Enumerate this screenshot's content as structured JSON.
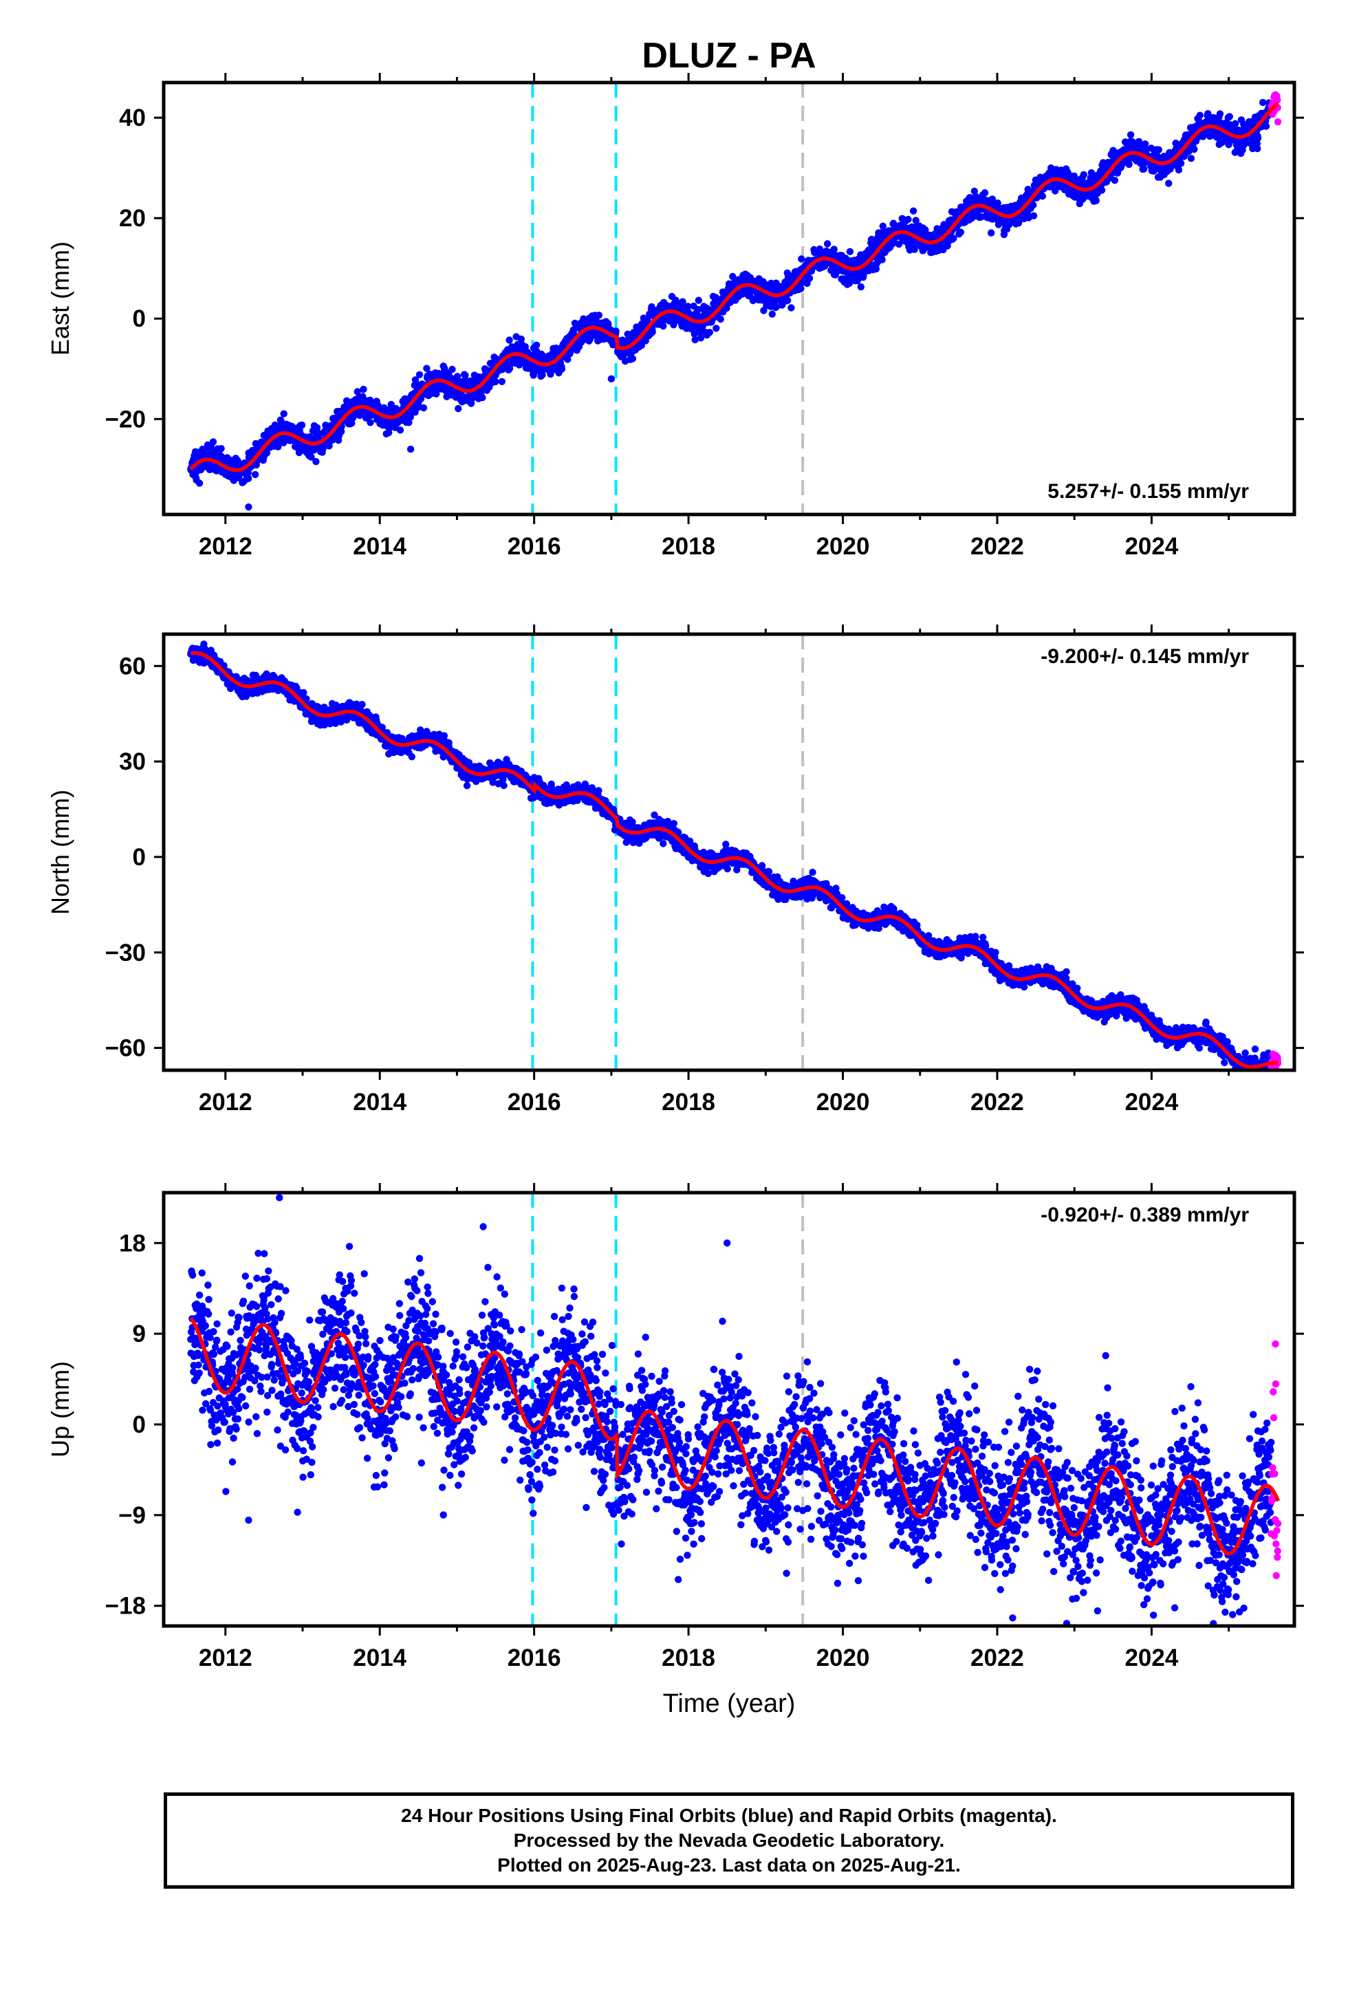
{
  "title": "DLUZ - PA",
  "colors": {
    "final_points": "#0000ff",
    "rapid_points": "#ff00ff",
    "model_line": "#ff0000",
    "step_major": "#00e5ff",
    "step_minor": "#c0c0c0"
  },
  "chart_data": [
    {
      "type": "scatter",
      "name": "east",
      "title": "",
      "xlabel": "",
      "ylabel": "East (mm)",
      "xlim": [
        2011.2,
        2025.85
      ],
      "ylim": [
        -39,
        47
      ],
      "xticks": [
        2012,
        2014,
        2016,
        2018,
        2020,
        2022,
        2024
      ],
      "xtick_labels": [
        "2012",
        "2014",
        "2016",
        "2018",
        "2020",
        "2022",
        "2024"
      ],
      "yticks": [
        -20,
        0,
        20,
        40
      ],
      "ytick_labels": [
        "−20",
        "0",
        "20",
        "40"
      ],
      "rate_text": "5.257+/- 0.155 mm/yr",
      "rate_position": "bottom-right",
      "data_start": 2011.55,
      "data_end": 2025.64,
      "rapid_start": 2025.55,
      "trend": {
        "intercept_at_2011_5": -31.5,
        "rate_mm_per_yr": 5.257
      },
      "seasonal_amplitude": 2.2,
      "offsets": [
        {
          "year": 2016.0,
          "step": 0.0
        },
        {
          "year": 2017.07,
          "step": -2.0
        }
      ],
      "scatter_spread": 1.3,
      "outliers": [
        {
          "x": 2012.3,
          "y": -37.5
        },
        {
          "x": 2014.4,
          "y": -26.0
        },
        {
          "x": 2017.0,
          "y": -12.0
        }
      ],
      "step_lines": [
        {
          "year": 2015.98,
          "kind": "major"
        },
        {
          "year": 2017.06,
          "kind": "major"
        },
        {
          "year": 2019.48,
          "kind": "minor"
        }
      ]
    },
    {
      "type": "scatter",
      "name": "north",
      "title": "",
      "xlabel": "",
      "ylabel": "North (mm)",
      "xlim": [
        2011.2,
        2025.85
      ],
      "ylim": [
        -67,
        70
      ],
      "xticks": [
        2012,
        2014,
        2016,
        2018,
        2020,
        2022,
        2024
      ],
      "xtick_labels": [
        "2012",
        "2014",
        "2016",
        "2018",
        "2020",
        "2022",
        "2024"
      ],
      "yticks": [
        -60,
        -30,
        0,
        30,
        60
      ],
      "ytick_labels": [
        "−60",
        "−30",
        "0",
        "30",
        "60"
      ],
      "rate_text": "-9.200+/- 0.145 mm/yr",
      "rate_position": "top-right",
      "data_start": 2011.55,
      "data_end": 2025.64,
      "rapid_start": 2025.55,
      "trend": {
        "intercept_at_2011_5": 63.0,
        "rate_mm_per_yr": -9.2
      },
      "seasonal_amplitude": 2.5,
      "offsets": [
        {
          "year": 2016.0,
          "step": 2.0
        },
        {
          "year": 2017.07,
          "step": -2.0
        }
      ],
      "scatter_spread": 1.4,
      "outliers": [],
      "step_lines": [
        {
          "year": 2015.98,
          "kind": "major"
        },
        {
          "year": 2017.06,
          "kind": "major"
        },
        {
          "year": 2019.48,
          "kind": "minor"
        }
      ]
    },
    {
      "type": "scatter",
      "name": "up",
      "title": "",
      "xlabel": "Time (year)",
      "ylabel": "Up (mm)",
      "xlim": [
        2011.2,
        2025.85
      ],
      "ylim": [
        -20,
        23
      ],
      "xticks": [
        2012,
        2014,
        2016,
        2018,
        2020,
        2022,
        2024
      ],
      "xtick_labels": [
        "2012",
        "2014",
        "2016",
        "2018",
        "2020",
        "2022",
        "2024"
      ],
      "yticks": [
        -18,
        -9,
        0,
        9,
        18
      ],
      "ytick_labels": [
        "−18",
        "−9",
        "0",
        "9",
        "18"
      ],
      "rate_text": "-0.920+/- 0.389 mm/yr",
      "rate_position": "top-right",
      "data_start": 2011.55,
      "data_end": 2025.64,
      "rapid_start": 2025.55,
      "trend": {
        "intercept_at_2011_5": 7.2,
        "rate_mm_per_yr": -0.92
      },
      "seasonal_amplitude": 3.6,
      "offsets": [
        {
          "year": 2017.07,
          "step": -4.0
        }
      ],
      "scatter_spread": 3.4,
      "outliers": [
        {
          "x": 2012.7,
          "y": 22.5
        },
        {
          "x": 2018.5,
          "y": 18.0
        },
        {
          "x": 2012.3,
          "y": -9.5
        },
        {
          "x": 2022.2,
          "y": -19.2
        },
        {
          "x": 2023.3,
          "y": -18.5
        },
        {
          "x": 2024.3,
          "y": -18.2
        },
        {
          "x": 2020.2,
          "y": -15.5
        }
      ],
      "step_lines": [
        {
          "year": 2015.98,
          "kind": "major"
        },
        {
          "year": 2017.06,
          "kind": "major"
        },
        {
          "year": 2019.48,
          "kind": "minor"
        }
      ]
    }
  ],
  "footer": {
    "line1": "24 Hour Positions Using Final Orbits (blue) and Rapid Orbits (magenta).",
    "line2": "Processed by the Nevada Geodetic Laboratory.",
    "line3": "Plotted on 2025-Aug-23. Last data on 2025-Aug-21."
  }
}
